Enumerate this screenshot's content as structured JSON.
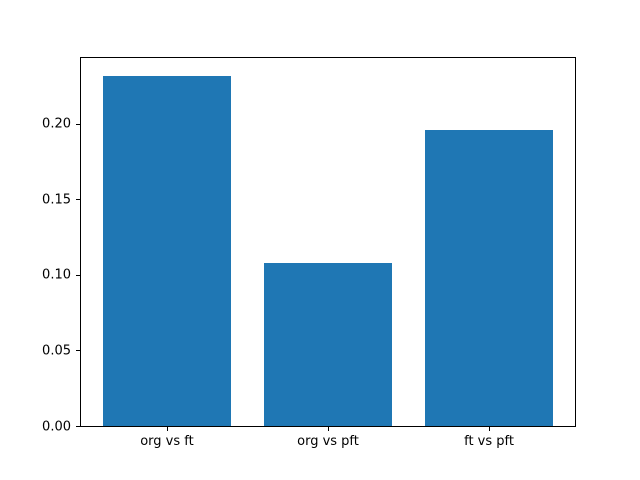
{
  "chart_data": {
    "type": "bar",
    "categories": [
      "org vs ft",
      "org vs pft",
      "ft vs pft"
    ],
    "values": [
      0.232,
      0.108,
      0.196
    ],
    "title": "",
    "xlabel": "",
    "ylabel": "",
    "ylim": [
      0,
      0.2436
    ],
    "yticks": [
      0.0,
      0.05,
      0.1,
      0.15,
      0.2
    ],
    "ytick_labels": [
      "0.00",
      "0.05",
      "0.10",
      "0.15",
      "0.20"
    ],
    "bar_color": "#1f77b4",
    "axis_color": "#000000",
    "background_color": "#ffffff",
    "grid": false,
    "legend": null
  }
}
